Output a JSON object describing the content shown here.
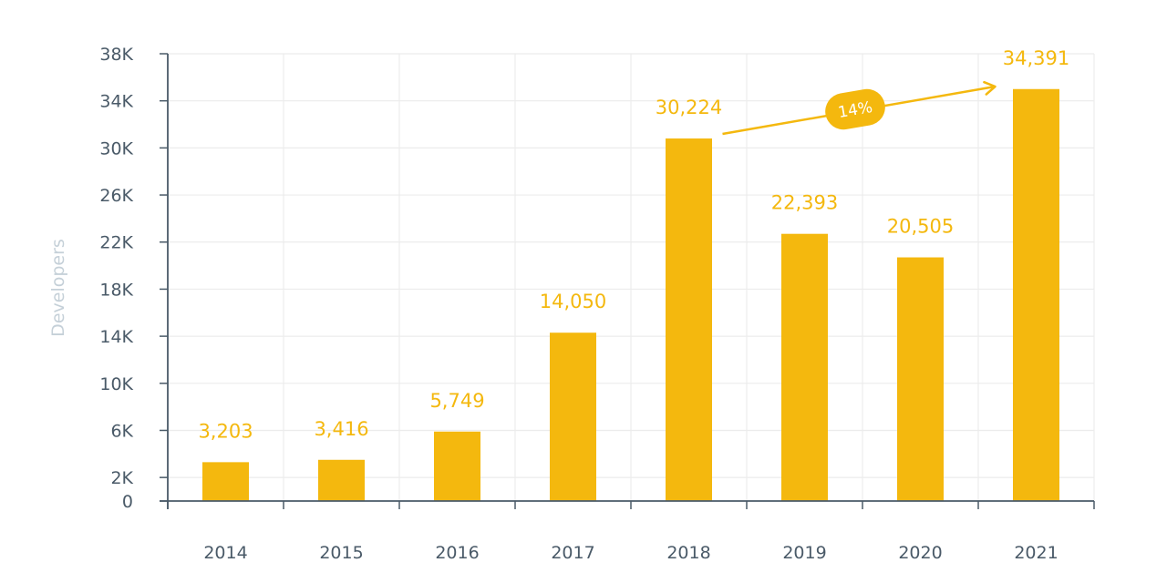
{
  "chart_data": {
    "type": "bar",
    "title": "",
    "xlabel": "",
    "ylabel": "Developers",
    "ylim": [
      0,
      38000
    ],
    "yticks": [
      0,
      2000,
      6000,
      10000,
      14000,
      18000,
      22000,
      26000,
      30000,
      34000,
      38000
    ],
    "ytick_labels": [
      "0",
      "2K",
      "6K",
      "10K",
      "14K",
      "18K",
      "22K",
      "26K",
      "30K",
      "34K",
      "38K"
    ],
    "grid": true,
    "legend": "none",
    "categories": [
      "2014",
      "2015",
      "2016",
      "2017",
      "2018",
      "2019",
      "2020",
      "2021"
    ],
    "values": [
      3203,
      3416,
      5749,
      14050,
      30224,
      22393,
      20505,
      34391
    ],
    "data_labels": [
      "3,203",
      "3,416",
      "5,749",
      "14,050",
      "30,224",
      "22,393",
      "20,505",
      "34,391"
    ],
    "rendered_bar_heights": [
      3300,
      3500,
      5900,
      14300,
      30800,
      22700,
      20700,
      35000
    ],
    "annotations": [
      {
        "type": "arrow",
        "from": "2018",
        "to": "2021",
        "label": "14%"
      }
    ],
    "colors": {
      "bar": "#f4b80e",
      "label": "#f4b80e",
      "axis": "#4a5a68",
      "grid": "#ececec",
      "ylabel": "#c5d0d8"
    }
  }
}
